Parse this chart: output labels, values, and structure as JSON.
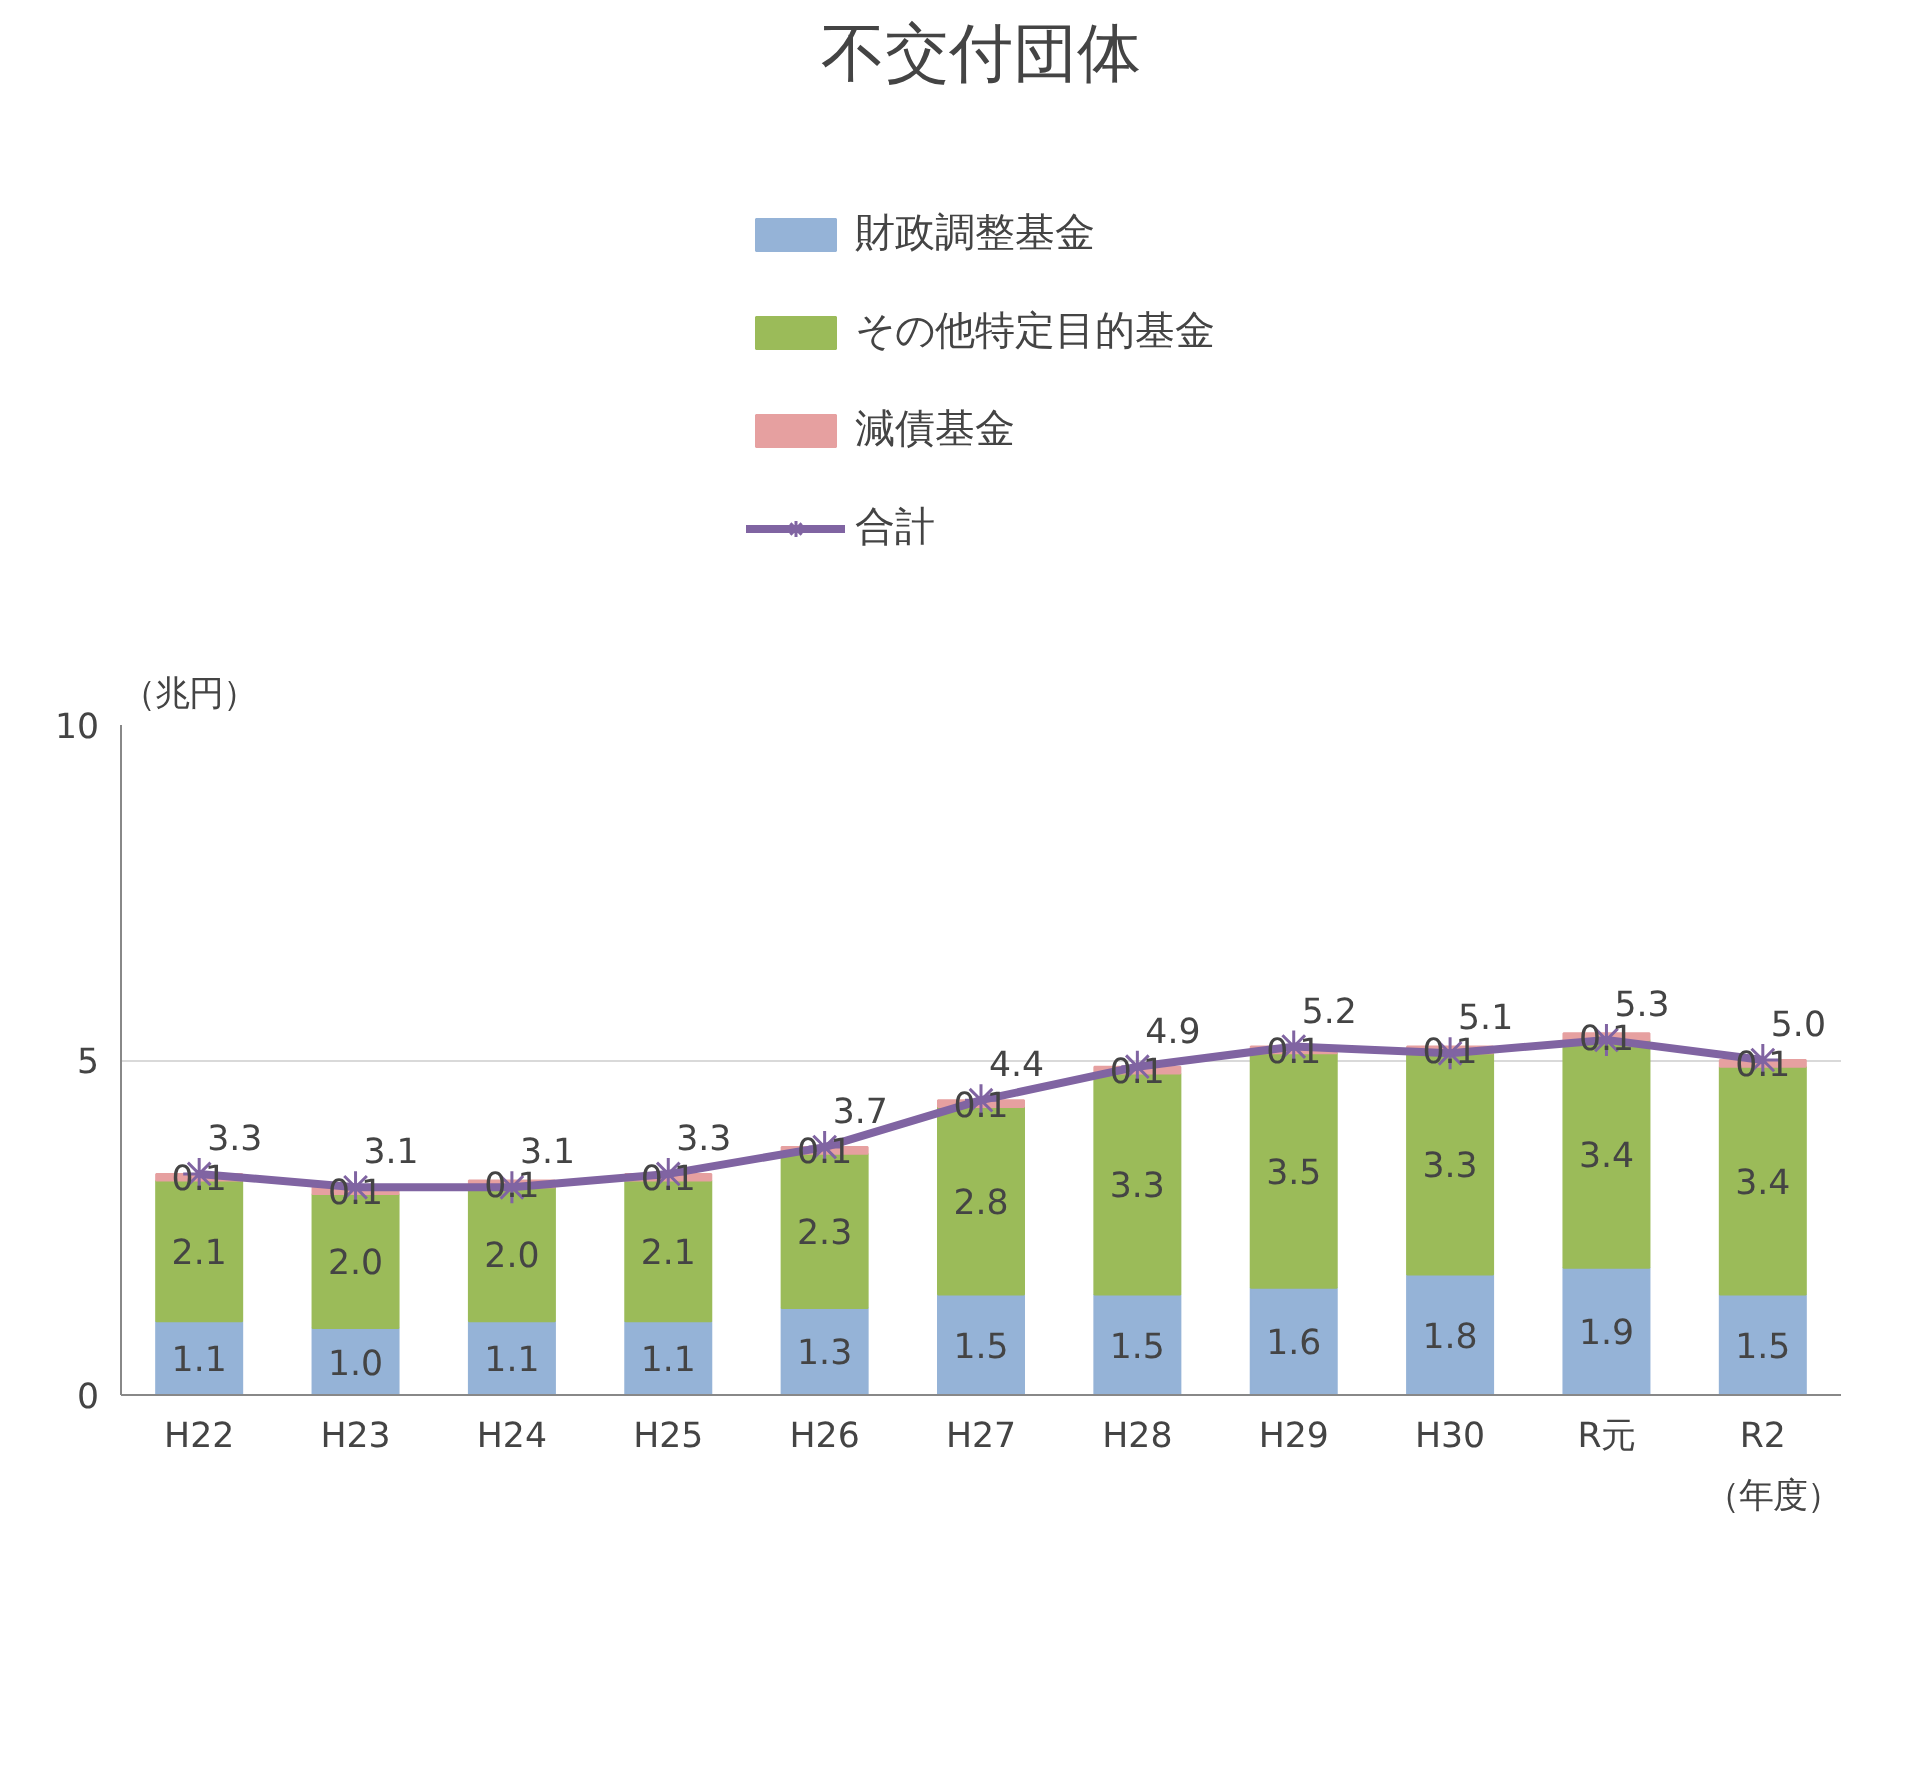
{
  "chart_data": {
    "type": "bar",
    "stacked": true,
    "title": "不交付団体",
    "ylabel": "（兆円）",
    "xlabel": "（年度）",
    "categories": [
      "H22",
      "H23",
      "H24",
      "H25",
      "H26",
      "H27",
      "H28",
      "H29",
      "H30",
      "R元",
      "R2"
    ],
    "series": [
      {
        "name": "財政調整基金",
        "color": "#95b3d7",
        "values": [
          1.1,
          1.0,
          1.1,
          1.1,
          1.3,
          1.5,
          1.5,
          1.6,
          1.8,
          1.9,
          1.5
        ],
        "value_labels": [
          "1.1",
          "1.0",
          "1.1",
          "1.1",
          "1.3",
          "1.5",
          "1.5",
          "1.6",
          "1.8",
          "1.9",
          "1.5"
        ]
      },
      {
        "name": "その他特定目的基金",
        "color": "#9bbb59",
        "values": [
          2.1,
          2.0,
          2.0,
          2.1,
          2.3,
          2.8,
          3.3,
          3.5,
          3.3,
          3.4,
          3.4
        ],
        "value_labels": [
          "2.1",
          "2.0",
          "2.0",
          "2.1",
          "2.3",
          "2.8",
          "3.3",
          "3.5",
          "3.3",
          "3.4",
          "3.4"
        ]
      },
      {
        "name": "減債基金",
        "color": "#e6a0a0",
        "values": [
          0.1,
          0.1,
          0.1,
          0.1,
          0.1,
          0.1,
          0.1,
          0.1,
          0.1,
          0.1,
          0.1
        ],
        "value_labels": [
          "0.1",
          "0.1",
          "0.1",
          "0.1",
          "0.1",
          "0.1",
          "0.1",
          "0.1",
          "0.1",
          "0.1",
          "0.1"
        ]
      },
      {
        "name": "合計",
        "type": "line",
        "color": "#8064a2",
        "marker": "cross",
        "values": [
          3.3,
          3.1,
          3.1,
          3.3,
          3.7,
          4.4,
          4.9,
          5.2,
          5.1,
          5.3,
          5.0
        ],
        "value_labels": [
          "3.3",
          "3.1",
          "3.1",
          "3.3",
          "3.7",
          "4.4",
          "4.9",
          "5.2",
          "5.1",
          "5.3",
          "5.0"
        ]
      }
    ],
    "ylim": [
      0,
      10
    ],
    "yticks": [
      0,
      5,
      10
    ],
    "grid": "y",
    "legend": "top"
  }
}
